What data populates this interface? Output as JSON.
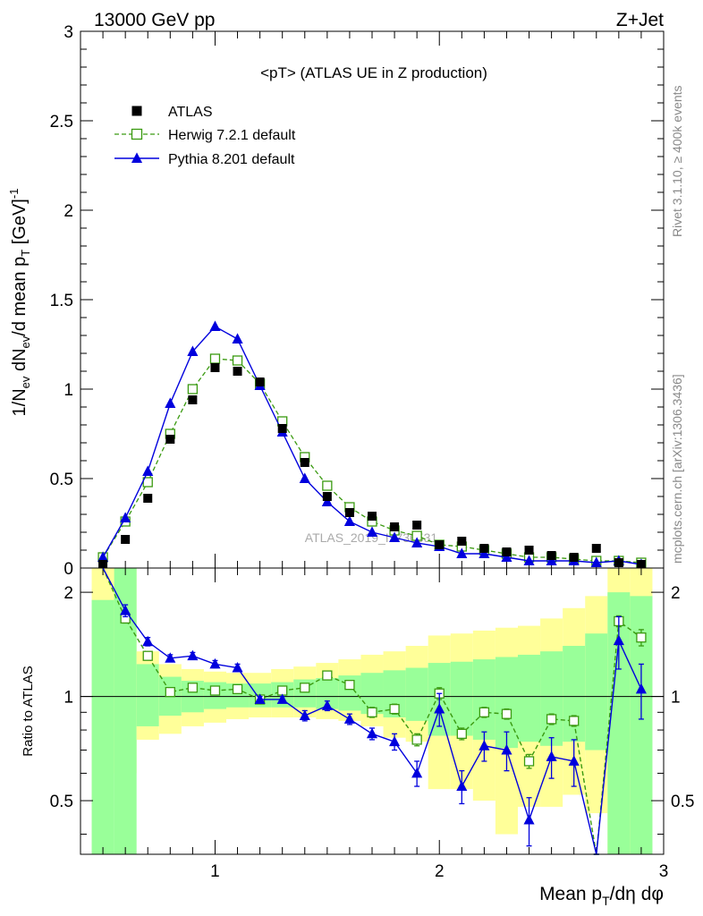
{
  "header": {
    "left": "13000 GeV pp",
    "right": "Z+Jet"
  },
  "side_labels": {
    "rivet": "Rivet 3.1.10, ≥ 400k events",
    "mcplots": "mcplots.cern.ch [arXiv:1306.3436]"
  },
  "watermark": "ATLAS_2019_I1736531",
  "colors": {
    "data": "#000000",
    "herwig": "#3a9a10",
    "pythia": "#0000dd",
    "band_outer": "#ffff99",
    "band_inner": "#99ff99"
  },
  "chart_data": [
    {
      "type": "scatter",
      "panel": "main",
      "title": "<pT> (ATLAS UE in Z production)",
      "ylabel": "1/N_ev dN_ev/d mean p_T [GeV]^-1",
      "xlim": [
        0.4,
        3.0
      ],
      "ylim": [
        0,
        3.0
      ],
      "yticks": [
        "0",
        "0.5",
        "1",
        "1.5",
        "2",
        "2.5",
        "3"
      ],
      "legend_position": "top-left",
      "legend": [
        "ATLAS",
        "Herwig 7.2.1 default",
        "Pythia 8.201 default"
      ],
      "x": [
        0.5,
        0.6,
        0.7,
        0.8,
        0.9,
        1.0,
        1.1,
        1.2,
        1.3,
        1.4,
        1.5,
        1.6,
        1.7,
        1.8,
        1.9,
        2.0,
        2.1,
        2.2,
        2.3,
        2.4,
        2.5,
        2.6,
        2.7,
        2.8,
        2.9
      ],
      "series": [
        {
          "name": "ATLAS",
          "values": [
            0.02,
            0.16,
            0.39,
            0.72,
            0.94,
            1.12,
            1.1,
            1.04,
            0.78,
            0.59,
            0.4,
            0.31,
            0.29,
            0.23,
            0.24,
            0.13,
            0.15,
            0.11,
            0.09,
            0.1,
            0.07,
            0.06,
            0.11,
            0.03,
            0.02
          ]
        },
        {
          "name": "Herwig 7.2.1 default",
          "values": [
            0.06,
            0.26,
            0.48,
            0.75,
            1.0,
            1.17,
            1.16,
            1.03,
            0.82,
            0.62,
            0.46,
            0.34,
            0.26,
            0.21,
            0.18,
            0.13,
            0.12,
            0.1,
            0.08,
            0.06,
            0.06,
            0.05,
            0.04,
            0.04,
            0.03
          ]
        },
        {
          "name": "Pythia 8.201 default",
          "values": [
            0.06,
            0.28,
            0.54,
            0.92,
            1.21,
            1.35,
            1.28,
            1.02,
            0.76,
            0.5,
            0.37,
            0.26,
            0.2,
            0.17,
            0.14,
            0.12,
            0.08,
            0.08,
            0.06,
            0.04,
            0.04,
            0.04,
            0.03,
            0.04,
            0.02
          ]
        }
      ]
    },
    {
      "type": "line",
      "panel": "ratio",
      "ylabel": "Ratio to ATLAS",
      "xlabel": "Mean p_T/dη dφ",
      "xlim": [
        0.4,
        3.0
      ],
      "ylim": [
        0.35,
        2.35
      ],
      "ylog": true,
      "yticks": [
        "0.5",
        "1",
        "2"
      ],
      "xticks": [
        "1",
        "2",
        "3"
      ],
      "x": [
        0.5,
        0.6,
        0.7,
        0.8,
        0.9,
        1.0,
        1.1,
        1.2,
        1.3,
        1.4,
        1.5,
        1.6,
        1.7,
        1.8,
        1.9,
        2.0,
        2.1,
        2.2,
        2.3,
        2.4,
        2.5,
        2.6,
        2.7,
        2.8,
        2.9
      ],
      "bins": [
        [
          0.45,
          0.55
        ],
        [
          0.55,
          0.65
        ],
        [
          0.65,
          0.75
        ],
        [
          0.75,
          0.85
        ],
        [
          0.85,
          0.95
        ],
        [
          0.95,
          1.05
        ],
        [
          1.05,
          1.15
        ],
        [
          1.15,
          1.25
        ],
        [
          1.25,
          1.35
        ],
        [
          1.35,
          1.45
        ],
        [
          1.45,
          1.55
        ],
        [
          1.55,
          1.65
        ],
        [
          1.65,
          1.75
        ],
        [
          1.75,
          1.85
        ],
        [
          1.85,
          1.95
        ],
        [
          1.95,
          2.05
        ],
        [
          2.05,
          2.15
        ],
        [
          2.15,
          2.25
        ],
        [
          2.25,
          2.35
        ],
        [
          2.35,
          2.45
        ],
        [
          2.45,
          2.55
        ],
        [
          2.55,
          2.65
        ],
        [
          2.65,
          2.75
        ],
        [
          2.75,
          2.85
        ],
        [
          2.85,
          2.95
        ]
      ],
      "band_outer": [
        [
          0.3,
          2.4
        ],
        [
          0.6,
          2.4
        ],
        [
          0.75,
          1.35
        ],
        [
          0.78,
          1.24
        ],
        [
          0.82,
          1.2
        ],
        [
          0.84,
          1.18
        ],
        [
          0.86,
          1.17
        ],
        [
          0.87,
          1.17
        ],
        [
          0.87,
          1.2
        ],
        [
          0.87,
          1.22
        ],
        [
          0.86,
          1.25
        ],
        [
          0.85,
          1.28
        ],
        [
          0.82,
          1.32
        ],
        [
          0.76,
          1.35
        ],
        [
          0.74,
          1.4
        ],
        [
          0.54,
          1.5
        ],
        [
          0.54,
          1.52
        ],
        [
          0.5,
          1.55
        ],
        [
          0.4,
          1.58
        ],
        [
          0.48,
          1.6
        ],
        [
          0.48,
          1.68
        ],
        [
          0.52,
          1.8
        ],
        [
          0.46,
          1.95
        ],
        [
          0.3,
          2.4
        ],
        [
          0.3,
          2.4
        ]
      ],
      "band_inner": [
        [
          0.3,
          1.9
        ],
        [
          0.3,
          2.4
        ],
        [
          0.82,
          1.24
        ],
        [
          0.88,
          1.14
        ],
        [
          0.9,
          1.11
        ],
        [
          0.92,
          1.1
        ],
        [
          0.93,
          1.09
        ],
        [
          0.93,
          1.09
        ],
        [
          0.93,
          1.1
        ],
        [
          0.93,
          1.12
        ],
        [
          0.92,
          1.13
        ],
        [
          0.91,
          1.15
        ],
        [
          0.89,
          1.17
        ],
        [
          0.87,
          1.19
        ],
        [
          0.85,
          1.21
        ],
        [
          0.77,
          1.25
        ],
        [
          0.77,
          1.26
        ],
        [
          0.75,
          1.28
        ],
        [
          0.71,
          1.3
        ],
        [
          0.74,
          1.32
        ],
        [
          0.72,
          1.35
        ],
        [
          0.74,
          1.4
        ],
        [
          0.7,
          1.52
        ],
        [
          0.3,
          2.0
        ],
        [
          0.3,
          1.95
        ]
      ],
      "series": [
        {
          "name": "Herwig 7.2.1 default",
          "values": [
            2.8,
            1.68,
            1.31,
            1.03,
            1.06,
            1.04,
            1.05,
            0.98,
            1.04,
            1.06,
            1.15,
            1.08,
            0.9,
            0.92,
            0.75,
            1.02,
            0.78,
            0.9,
            0.89,
            0.65,
            0.86,
            0.85,
            0.33,
            1.65,
            1.48
          ],
          "errors": [
            0,
            0.05,
            0.03,
            0.02,
            0.02,
            0.02,
            0.02,
            0.02,
            0.02,
            0.02,
            0.03,
            0.03,
            0.03,
            0.03,
            0.03,
            0.04,
            0.03,
            0.03,
            0.03,
            0.03,
            0.03,
            0.03,
            0.02,
            0.06,
            0.08
          ]
        },
        {
          "name": "Pythia 8.201 default",
          "values": [
            2.8,
            1.77,
            1.44,
            1.29,
            1.31,
            1.24,
            1.21,
            0.98,
            0.98,
            0.88,
            0.94,
            0.86,
            0.78,
            0.74,
            0.6,
            0.92,
            0.55,
            0.72,
            0.7,
            0.44,
            0.67,
            0.65,
            0.3,
            1.45,
            1.05
          ],
          "errors": [
            0,
            0.07,
            0.04,
            0.03,
            0.03,
            0.03,
            0.03,
            0.02,
            0.02,
            0.03,
            0.03,
            0.03,
            0.03,
            0.04,
            0.05,
            0.1,
            0.06,
            0.07,
            0.09,
            0.07,
            0.09,
            0.1,
            0.05,
            0.25,
            0.19
          ]
        }
      ]
    }
  ]
}
